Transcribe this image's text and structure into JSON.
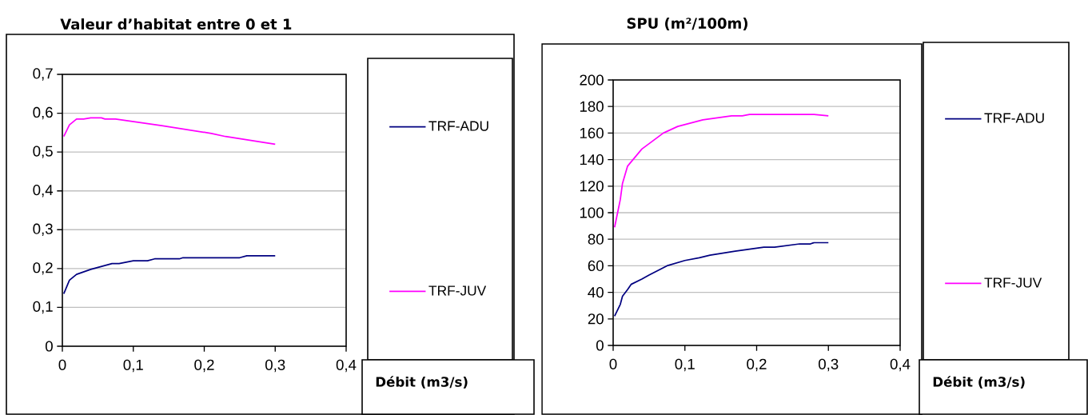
{
  "chart_data": [
    {
      "type": "line",
      "title": "Valeur d’habitat entre 0 et 1",
      "xlabel": "Débit (m3/s)",
      "xlim": [
        0,
        0.4
      ],
      "xticks": [
        0,
        {
          "value": 0.1,
          "label": "0,1"
        },
        {
          "value": 0.2,
          "label": "0,2"
        },
        {
          "value": 0.3,
          "label": "0,3"
        },
        {
          "value": 0.4,
          "label": "0,4"
        }
      ],
      "ylim": [
        0,
        0.7
      ],
      "yticks": [
        0,
        {
          "value": 0.1,
          "label": "0,1"
        },
        {
          "value": 0.2,
          "label": "0,2"
        },
        {
          "value": 0.3,
          "label": "0,3"
        },
        {
          "value": 0.4,
          "label": "0,4"
        },
        {
          "value": 0.5,
          "label": "0,5"
        },
        {
          "value": 0.6,
          "label": "0,6"
        },
        {
          "value": 0.7,
          "label": "0,7"
        }
      ],
      "grid": "y",
      "legend": "right",
      "series": [
        {
          "name": "TRF-ADU",
          "color": "#000080",
          "x": [
            0.002,
            0.01,
            0.02,
            0.04,
            0.07,
            0.08,
            0.1,
            0.12,
            0.13,
            0.165,
            0.17,
            0.25,
            0.26,
            0.3
          ],
          "values": [
            0.135,
            0.17,
            0.185,
            0.198,
            0.213,
            0.213,
            0.22,
            0.22,
            0.225,
            0.225,
            0.228,
            0.228,
            0.233,
            0.233
          ]
        },
        {
          "name": "TRF-JUV",
          "color": "#ff00ff",
          "x": [
            0.002,
            0.01,
            0.02,
            0.03,
            0.04,
            0.055,
            0.06,
            0.075,
            0.14,
            0.21,
            0.23,
            0.3
          ],
          "values": [
            0.54,
            0.57,
            0.585,
            0.585,
            0.588,
            0.588,
            0.585,
            0.585,
            0.568,
            0.548,
            0.54,
            0.52
          ]
        }
      ]
    },
    {
      "type": "line",
      "title": "SPU (m²/100m)",
      "xlabel": "Débit (m3/s)",
      "xlim": [
        0,
        0.4
      ],
      "xticks": [
        0,
        {
          "value": 0.1,
          "label": "0,1"
        },
        {
          "value": 0.2,
          "label": "0,2"
        },
        {
          "value": 0.3,
          "label": "0,3"
        },
        {
          "value": 0.4,
          "label": "0,4"
        }
      ],
      "ylim": [
        0,
        200
      ],
      "yticks": [
        0,
        20,
        40,
        60,
        80,
        100,
        120,
        140,
        160,
        180,
        200
      ],
      "grid": "y",
      "legend": "right",
      "series": [
        {
          "name": "TRF-ADU",
          "color": "#000080",
          "x": [
            0.002,
            0.01,
            0.013,
            0.02,
            0.025,
            0.04,
            0.05,
            0.075,
            0.1,
            0.12,
            0.135,
            0.17,
            0.21,
            0.225,
            0.26,
            0.275,
            0.28,
            0.3
          ],
          "values": [
            22,
            31,
            37,
            42,
            46,
            50,
            53,
            60,
            64,
            66,
            68,
            71,
            74,
            74,
            76.5,
            76.5,
            77.5,
            77.5
          ]
        },
        {
          "name": "TRF-JUV",
          "color": "#ff00ff",
          "x": [
            0.002,
            0.01,
            0.013,
            0.02,
            0.04,
            0.07,
            0.09,
            0.125,
            0.165,
            0.18,
            0.19,
            0.28,
            0.3
          ],
          "values": [
            89,
            110,
            122,
            135,
            148,
            160,
            165,
            170,
            173,
            173,
            174,
            174,
            173
          ]
        }
      ]
    }
  ]
}
